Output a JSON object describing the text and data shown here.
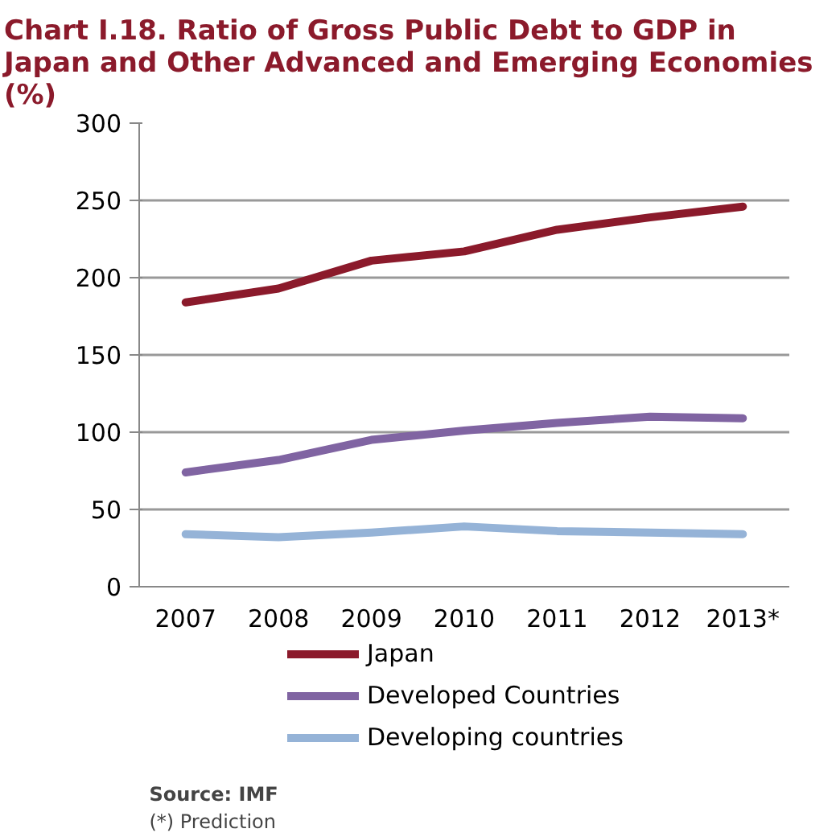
{
  "chart_data": {
    "type": "line",
    "title": "Chart I.18. Ratio of Gross Public Debt to GDP in Japan and Other Advanced and Emerging Economies (%)",
    "categories": [
      "2007",
      "2008",
      "2009",
      "2010",
      "2011",
      "2012",
      "2013*"
    ],
    "series": [
      {
        "name": "Japan",
        "color": "#8b1a2b",
        "values": [
          184,
          193,
          211,
          217,
          231,
          239,
          246
        ]
      },
      {
        "name": "Developed Countries",
        "color": "#8064a2",
        "values": [
          74,
          82,
          95,
          101,
          106,
          110,
          109
        ]
      },
      {
        "name": "Developing countries",
        "color": "#95b3d7",
        "values": [
          34,
          32,
          35,
          39,
          36,
          35,
          34
        ]
      }
    ],
    "ylim": [
      0,
      300
    ],
    "yticks": [
      0,
      50,
      100,
      150,
      200,
      250,
      300
    ],
    "grid": "y",
    "legend": "bottom",
    "marker": "none",
    "line_style": "solid",
    "annotations": [
      "Source: IMF",
      "(*) Prediction"
    ]
  }
}
